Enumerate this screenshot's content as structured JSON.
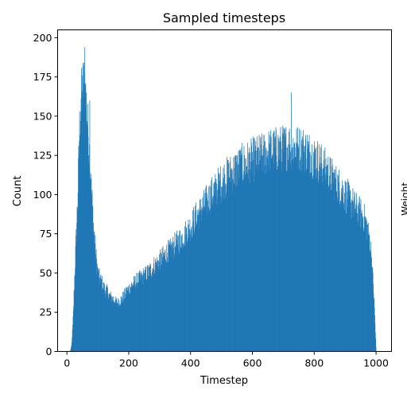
{
  "chart_data": {
    "type": "bar",
    "subtype": "histogram",
    "title": "Sampled timesteps",
    "xlabel": "Timestep",
    "ylabel": "Count",
    "xlim": [
      -30,
      1050
    ],
    "ylim": [
      0,
      205
    ],
    "x_ticks": [
      0,
      200,
      400,
      600,
      800,
      1000
    ],
    "y_ticks": [
      0,
      25,
      50,
      75,
      100,
      125,
      150,
      175,
      200
    ],
    "bar_color": "#1f77b4",
    "grid": false,
    "legend": "none",
    "bins": {
      "start": 10,
      "end": 1000,
      "width": 1
    },
    "envelope": [
      [
        10,
        0
      ],
      [
        15,
        4
      ],
      [
        20,
        22
      ],
      [
        25,
        50
      ],
      [
        30,
        75
      ],
      [
        35,
        100
      ],
      [
        40,
        140
      ],
      [
        45,
        160
      ],
      [
        50,
        168
      ],
      [
        55,
        170
      ],
      [
        60,
        165
      ],
      [
        65,
        150
      ],
      [
        70,
        135
      ],
      [
        75,
        118
      ],
      [
        80,
        100
      ],
      [
        85,
        82
      ],
      [
        90,
        70
      ],
      [
        95,
        58
      ],
      [
        100,
        50
      ],
      [
        110,
        45
      ],
      [
        120,
        40
      ],
      [
        130,
        38
      ],
      [
        140,
        35
      ],
      [
        150,
        33
      ],
      [
        160,
        31
      ],
      [
        170,
        32
      ],
      [
        180,
        34
      ],
      [
        190,
        37
      ],
      [
        200,
        40
      ],
      [
        220,
        44
      ],
      [
        240,
        47
      ],
      [
        260,
        50
      ],
      [
        280,
        54
      ],
      [
        300,
        58
      ],
      [
        320,
        62
      ],
      [
        340,
        66
      ],
      [
        360,
        70
      ],
      [
        380,
        74
      ],
      [
        400,
        80
      ],
      [
        420,
        86
      ],
      [
        440,
        92
      ],
      [
        460,
        98
      ],
      [
        480,
        103
      ],
      [
        500,
        108
      ],
      [
        520,
        112
      ],
      [
        540,
        115
      ],
      [
        560,
        118
      ],
      [
        580,
        120
      ],
      [
        600,
        122
      ],
      [
        620,
        124
      ],
      [
        640,
        126
      ],
      [
        660,
        128
      ],
      [
        680,
        129
      ],
      [
        700,
        130
      ],
      [
        720,
        131
      ],
      [
        740,
        130
      ],
      [
        760,
        129
      ],
      [
        780,
        127
      ],
      [
        800,
        124
      ],
      [
        820,
        120
      ],
      [
        840,
        115
      ],
      [
        860,
        110
      ],
      [
        880,
        105
      ],
      [
        900,
        100
      ],
      [
        920,
        95
      ],
      [
        940,
        90
      ],
      [
        960,
        85
      ],
      [
        970,
        80
      ],
      [
        980,
        70
      ],
      [
        985,
        60
      ],
      [
        990,
        45
      ],
      [
        995,
        25
      ],
      [
        998,
        10
      ],
      [
        1000,
        0
      ]
    ],
    "noise_amplitude": 0.12,
    "peaks": [
      {
        "x": 57,
        "y": 194
      },
      {
        "x": 73,
        "y": 160
      },
      {
        "x": 725,
        "y": 165
      }
    ],
    "right_edge_text": "Weight"
  }
}
